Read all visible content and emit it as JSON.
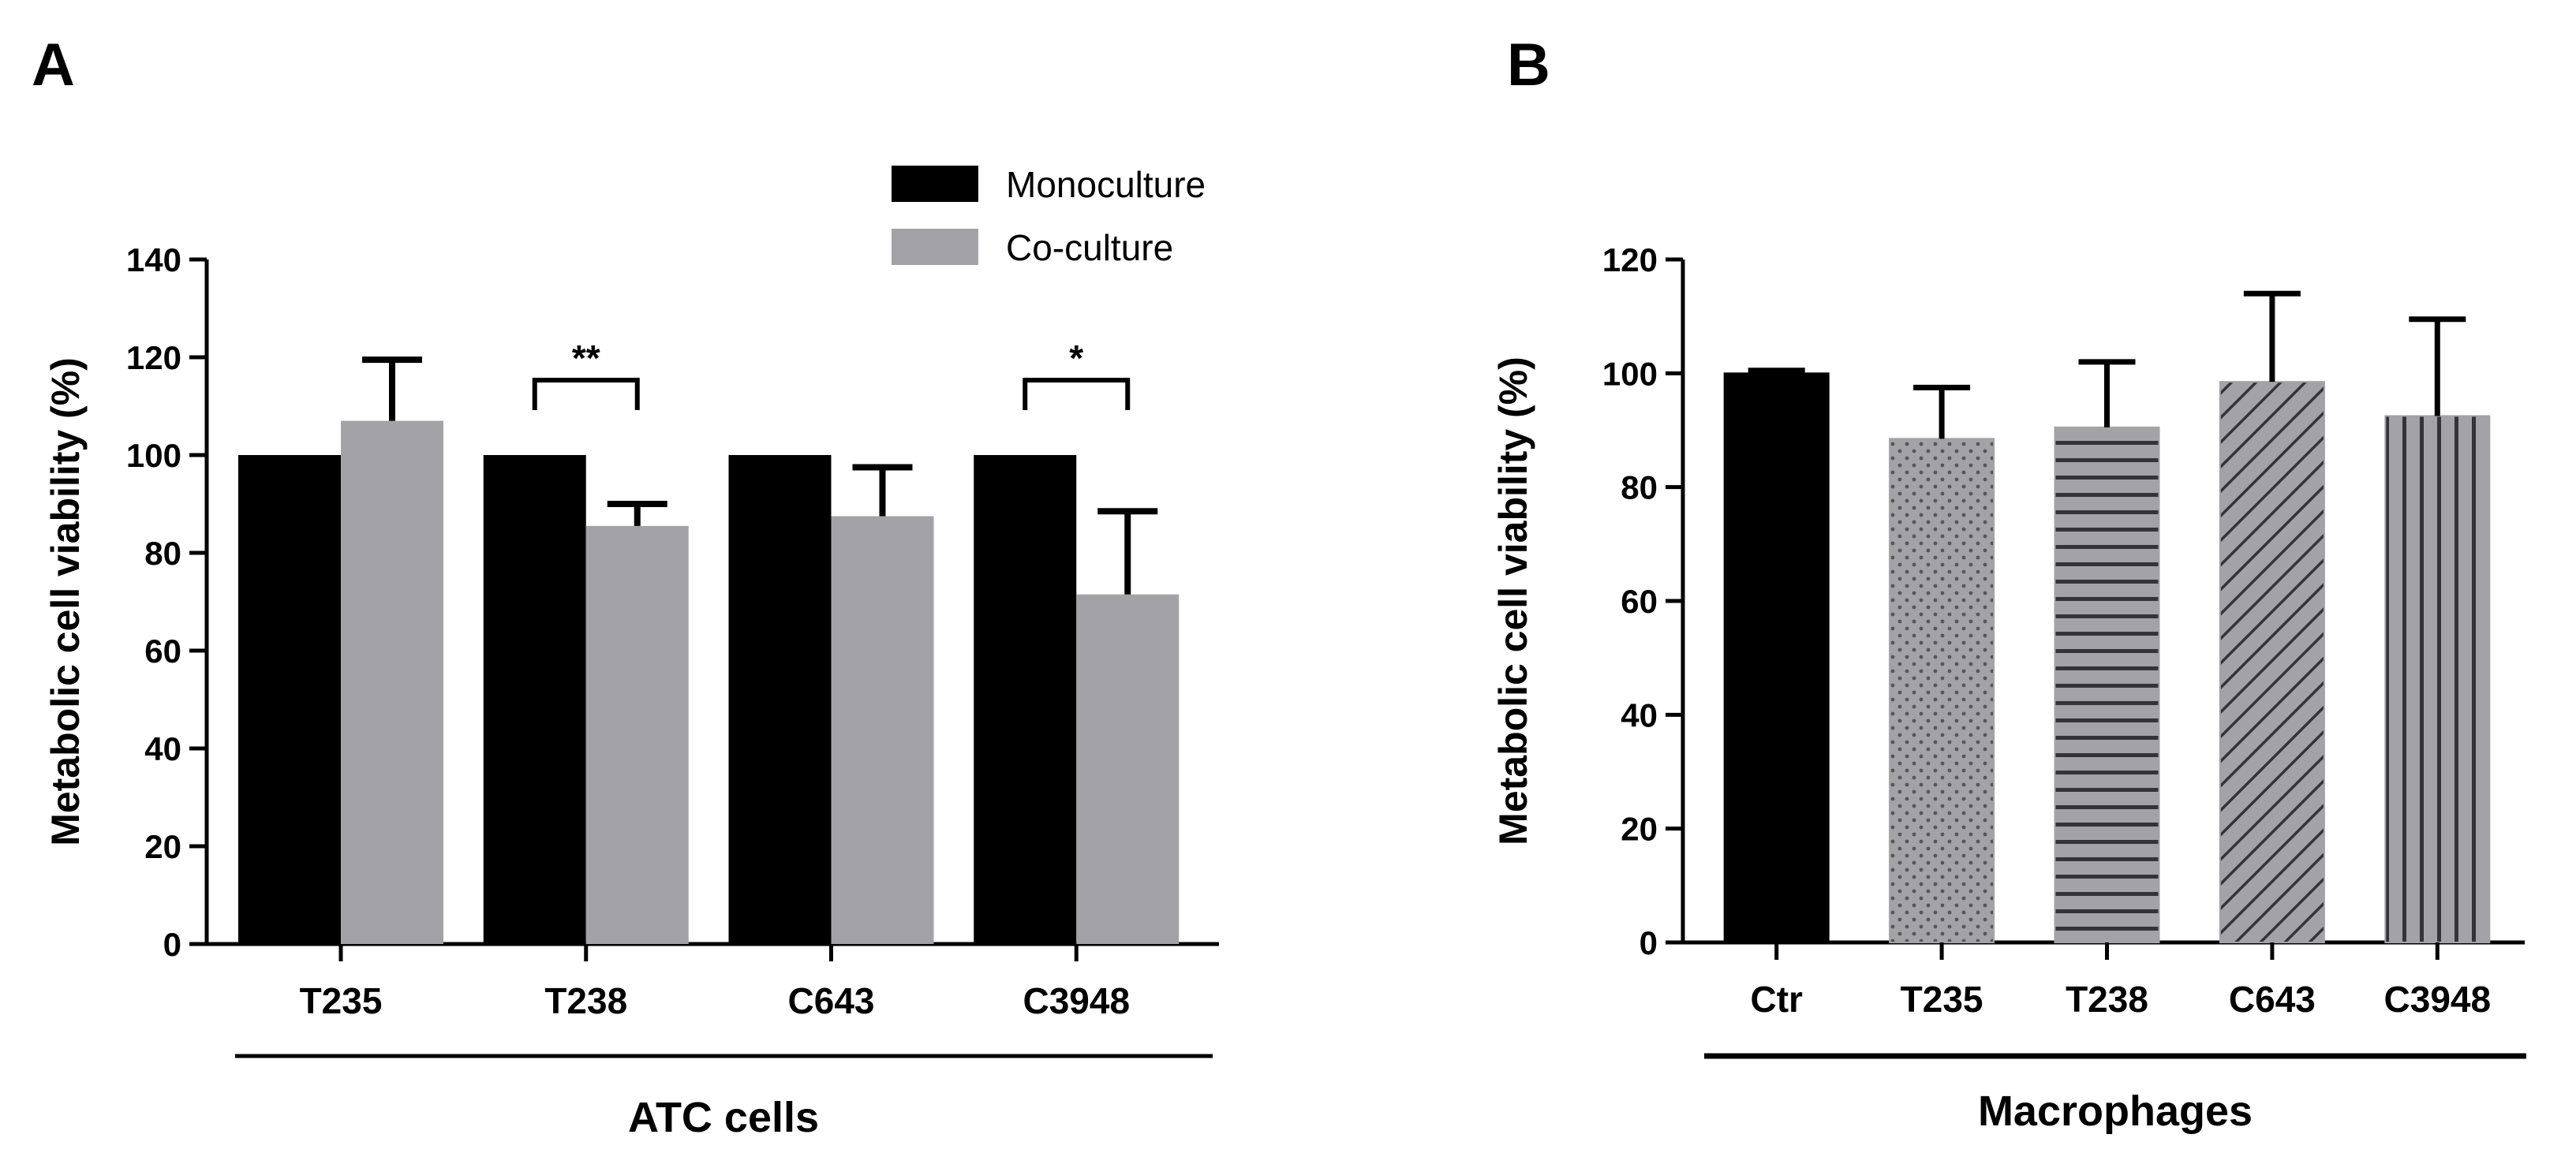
{
  "figure": {
    "panel_a_letter": "A",
    "panel_b_letter": "B"
  },
  "colors": {
    "monoculture": "#000000",
    "coculture": "#a3a3a7",
    "axis": "#000000"
  },
  "chart_data": [
    {
      "type": "bar",
      "panel": "A",
      "title": "",
      "ylabel": "Metabolic cell viability (%)",
      "xlabel": "ATC cells",
      "ylim": [
        0,
        140
      ],
      "yticks": [
        0,
        20,
        40,
        60,
        80,
        100,
        120,
        140
      ],
      "categories": [
        "T235",
        "T238",
        "C643",
        "C3948"
      ],
      "series": [
        {
          "name": "Monoculture",
          "values": [
            100,
            100,
            100,
            100
          ],
          "errors": [
            0,
            0,
            0,
            0
          ],
          "color": "#000000"
        },
        {
          "name": "Co-culture",
          "values": [
            107,
            85.5,
            87.5,
            71.5
          ],
          "errors": [
            12.5,
            4.5,
            10,
            17
          ],
          "color": "#a3a3a7"
        }
      ],
      "significance": [
        {
          "category": "T238",
          "label": "**"
        },
        {
          "category": "C3948",
          "label": "*"
        }
      ],
      "legend": {
        "position": "top-center",
        "entries": [
          "Monoculture",
          "Co-culture"
        ]
      }
    },
    {
      "type": "bar",
      "panel": "B",
      "title": "",
      "ylabel": "Metabolic cell viability (%)",
      "xlabel": "Macrophages",
      "ylim": [
        0,
        120
      ],
      "yticks": [
        0,
        20,
        40,
        60,
        80,
        100,
        120
      ],
      "categories": [
        "Ctr",
        "T235",
        "T238",
        "C643",
        "C3948"
      ],
      "values": [
        100,
        88.5,
        90.5,
        98.5,
        92.5
      ],
      "errors": [
        0.5,
        9,
        11.5,
        15.5,
        17
      ],
      "patterns": [
        "solid",
        "dots",
        "horizontal",
        "diagonal",
        "vertical"
      ]
    }
  ]
}
